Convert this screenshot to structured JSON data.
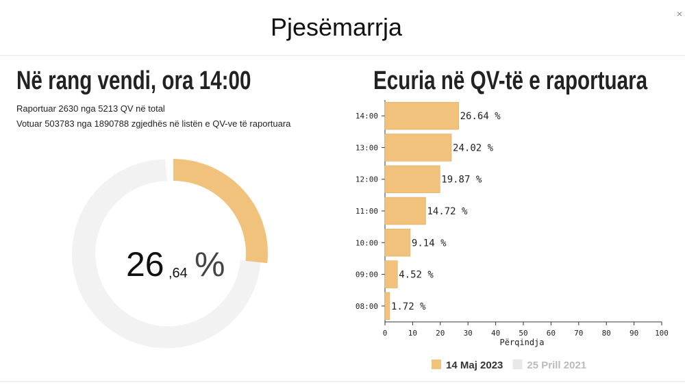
{
  "header": {
    "title": "Pjesëmarrja",
    "close": "×"
  },
  "summary": {
    "title": "Në rang vendi, ora 14:00",
    "lines": [
      "Raportuar 2630 nga 5213 QV në total",
      "Votuar 503783 nga 1890788 zgjedhës në listën e QV-ve të raportuara"
    ],
    "donut": {
      "value": 26.64,
      "integer_label": "26",
      "decimal_label": ",64",
      "unit": "%",
      "color": "#f0c27b"
    }
  },
  "chart_data": {
    "type": "hbar",
    "title": "Ecuria në QV-të e raportuara",
    "categories": [
      "14:00",
      "13:00",
      "12:00",
      "11:00",
      "10:00",
      "09:00",
      "08:00"
    ],
    "series": [
      {
        "name": "14 Maj 2023",
        "color": "#f0c27b",
        "values": [
          26.64,
          24.02,
          19.87,
          14.72,
          9.14,
          4.52,
          1.72
        ],
        "value_labels": [
          "26.64 %",
          "24.02 %",
          "19.87 %",
          "14.72 %",
          "9.14 %",
          "4.52 %",
          "1.72 %"
        ]
      },
      {
        "name": "25 Prill 2021",
        "color": "#e8e8e8",
        "values": [
          null,
          null,
          null,
          null,
          null,
          null,
          null
        ]
      }
    ],
    "xlabel": "Përqindja",
    "xlim": [
      0,
      100
    ],
    "xticks": [
      0,
      10,
      20,
      30,
      40,
      50,
      60,
      70,
      80,
      90,
      100
    ],
    "grid": false
  }
}
